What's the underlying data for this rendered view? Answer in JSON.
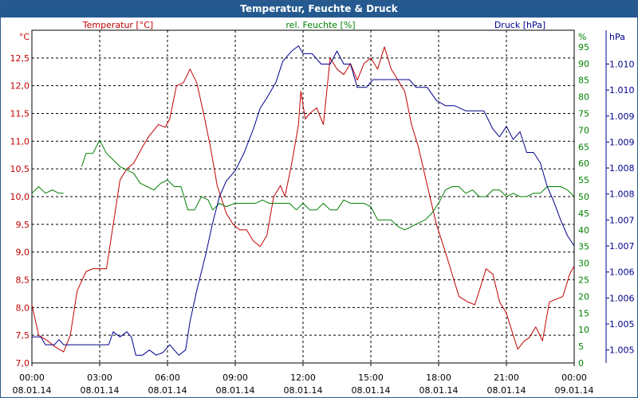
{
  "chart_data": {
    "type": "line",
    "title": "Temperatur, Feuchte & Druck",
    "x_ticks": [
      {
        "time": "00:00",
        "date": "08.01.14"
      },
      {
        "time": "03:00",
        "date": "08.01.14"
      },
      {
        "time": "06:00",
        "date": "08.01.14"
      },
      {
        "time": "09:00",
        "date": "08.01.14"
      },
      {
        "time": "12:00",
        "date": "08.01.14"
      },
      {
        "time": "15:00",
        "date": "08.01.14"
      },
      {
        "time": "18:00",
        "date": "08.01.14"
      },
      {
        "time": "21:00",
        "date": "08.01.14"
      },
      {
        "time": "00:00",
        "date": "09.01.14"
      }
    ],
    "x_range_hours": [
      0,
      24
    ],
    "axes": {
      "temperature": {
        "unit": "°C",
        "label": "Temperatur [°C]",
        "range": [
          7.0,
          13.0
        ],
        "ticks": [
          "7,0",
          "7,5",
          "8,0",
          "8,5",
          "9,0",
          "9,5",
          "10,0",
          "10,5",
          "11,0",
          "11,5",
          "12,0",
          "12,5"
        ],
        "color": "#c00000"
      },
      "humidity": {
        "unit": "%",
        "label": "rel. Feuchte [%]",
        "range": [
          0,
          100
        ],
        "ticks": [
          "0",
          "5",
          "10",
          "15",
          "20",
          "25",
          "30",
          "35",
          "40",
          "45",
          "50",
          "55",
          "60",
          "65",
          "70",
          "75",
          "80",
          "85",
          "90",
          "95"
        ],
        "color": "#008000"
      },
      "pressure": {
        "unit": "hPa",
        "label": "Druck [hPa]",
        "range": [
          1004.5,
          1010.9
        ],
        "ticks": [
          {
            "v": 1004.75,
            "label": "1.005"
          },
          {
            "v": 1005.25,
            "label": "1.005"
          },
          {
            "v": 1005.75,
            "label": "1.006"
          },
          {
            "v": 1006.25,
            "label": "1.006"
          },
          {
            "v": 1006.75,
            "label": "1.007"
          },
          {
            "v": 1007.25,
            "label": "1.007"
          },
          {
            "v": 1007.75,
            "label": "1.008"
          },
          {
            "v": 1008.25,
            "label": "1.008"
          },
          {
            "v": 1008.75,
            "label": "1.009"
          },
          {
            "v": 1009.25,
            "label": "1.009"
          },
          {
            "v": 1009.75,
            "label": "1.010"
          },
          {
            "v": 1010.25,
            "label": "1.010"
          }
        ],
        "color": "#00008b"
      }
    },
    "series": [
      {
        "name": "Temperatur [°C]",
        "axis": "temperature",
        "color": "#c00000",
        "points": [
          [
            0.0,
            8.05
          ],
          [
            0.3,
            7.5
          ],
          [
            0.7,
            7.4
          ],
          [
            1.0,
            7.3
          ],
          [
            1.4,
            7.2
          ],
          [
            1.7,
            7.5
          ],
          [
            2.0,
            8.3
          ],
          [
            2.4,
            8.65
          ],
          [
            2.7,
            8.7
          ],
          [
            3.0,
            8.7
          ],
          [
            3.3,
            8.7
          ],
          [
            3.6,
            9.5
          ],
          [
            3.9,
            10.3
          ],
          [
            4.2,
            10.5
          ],
          [
            4.5,
            10.6
          ],
          [
            4.9,
            10.9
          ],
          [
            5.2,
            11.1
          ],
          [
            5.6,
            11.3
          ],
          [
            5.9,
            11.25
          ],
          [
            6.1,
            11.4
          ],
          [
            6.4,
            12.0
          ],
          [
            6.7,
            12.05
          ],
          [
            7.0,
            12.3
          ],
          [
            7.3,
            12.05
          ],
          [
            7.6,
            11.5
          ],
          [
            7.9,
            10.9
          ],
          [
            8.2,
            10.2
          ],
          [
            8.6,
            9.7
          ],
          [
            8.9,
            9.5
          ],
          [
            9.2,
            9.4
          ],
          [
            9.5,
            9.4
          ],
          [
            9.8,
            9.2
          ],
          [
            10.1,
            9.1
          ],
          [
            10.4,
            9.3
          ],
          [
            10.7,
            10.0
          ],
          [
            11.0,
            10.2
          ],
          [
            11.2,
            10.0
          ],
          [
            11.5,
            10.6
          ],
          [
            11.8,
            11.3
          ],
          [
            11.9,
            11.9
          ],
          [
            12.1,
            11.4
          ],
          [
            12.3,
            11.5
          ],
          [
            12.6,
            11.6
          ],
          [
            12.9,
            11.3
          ],
          [
            13.2,
            12.5
          ],
          [
            13.5,
            12.3
          ],
          [
            13.8,
            12.2
          ],
          [
            14.1,
            12.4
          ],
          [
            14.4,
            12.1
          ],
          [
            14.7,
            12.4
          ],
          [
            15.0,
            12.5
          ],
          [
            15.3,
            12.3
          ],
          [
            15.6,
            12.7
          ],
          [
            15.9,
            12.3
          ],
          [
            16.2,
            12.1
          ],
          [
            16.5,
            11.9
          ],
          [
            16.8,
            11.3
          ],
          [
            17.1,
            10.9
          ],
          [
            17.5,
            10.2
          ],
          [
            17.9,
            9.5
          ],
          [
            18.3,
            9.0
          ],
          [
            18.6,
            8.6
          ],
          [
            18.9,
            8.2
          ],
          [
            19.3,
            8.1
          ],
          [
            19.6,
            8.05
          ],
          [
            19.8,
            8.3
          ],
          [
            20.1,
            8.7
          ],
          [
            20.4,
            8.6
          ],
          [
            20.7,
            8.1
          ],
          [
            21.0,
            7.9
          ],
          [
            21.3,
            7.5
          ],
          [
            21.5,
            7.25
          ],
          [
            21.8,
            7.4
          ],
          [
            22.0,
            7.45
          ],
          [
            22.3,
            7.65
          ],
          [
            22.6,
            7.4
          ],
          [
            22.9,
            8.1
          ],
          [
            23.2,
            8.15
          ],
          [
            23.5,
            8.2
          ],
          [
            23.8,
            8.6
          ],
          [
            24.0,
            8.75
          ]
        ]
      },
      {
        "name": "rel. Feuchte [%]",
        "axis": "humidity",
        "color": "#008000",
        "segments": [
          [
            [
              0.0,
              51
            ],
            [
              0.3,
              53
            ],
            [
              0.6,
              51
            ],
            [
              0.9,
              52
            ],
            [
              1.2,
              51
            ],
            [
              1.4,
              51
            ]
          ],
          [
            [
              2.2,
              59
            ],
            [
              2.4,
              63
            ],
            [
              2.7,
              63
            ],
            [
              3.0,
              67
            ],
            [
              3.3,
              63
            ],
            [
              3.6,
              61
            ],
            [
              3.9,
              59
            ],
            [
              4.2,
              58
            ],
            [
              4.5,
              57
            ],
            [
              4.8,
              54
            ],
            [
              5.1,
              53
            ],
            [
              5.4,
              52
            ],
            [
              5.7,
              54
            ],
            [
              6.0,
              55
            ],
            [
              6.3,
              53
            ],
            [
              6.6,
              53
            ],
            [
              6.9,
              46
            ],
            [
              7.2,
              46
            ],
            [
              7.5,
              50
            ],
            [
              7.8,
              49
            ],
            [
              8.0,
              46
            ],
            [
              8.3,
              48
            ],
            [
              8.6,
              47
            ],
            [
              9.0,
              48
            ],
            [
              9.3,
              48
            ],
            [
              9.6,
              48
            ],
            [
              9.9,
              48
            ],
            [
              10.2,
              49
            ],
            [
              10.5,
              48
            ],
            [
              10.8,
              48
            ],
            [
              11.1,
              48
            ],
            [
              11.4,
              48
            ],
            [
              11.7,
              46
            ],
            [
              12.0,
              48
            ],
            [
              12.3,
              46
            ],
            [
              12.6,
              46
            ],
            [
              12.9,
              48
            ],
            [
              13.2,
              46
            ],
            [
              13.5,
              46
            ],
            [
              13.8,
              49
            ],
            [
              14.1,
              48
            ],
            [
              14.4,
              48
            ],
            [
              14.7,
              48
            ],
            [
              15.0,
              47
            ],
            [
              15.3,
              43
            ],
            [
              15.6,
              43
            ],
            [
              15.9,
              43
            ],
            [
              16.2,
              41
            ],
            [
              16.5,
              40
            ],
            [
              16.8,
              41
            ],
            [
              17.1,
              42
            ],
            [
              17.4,
              43
            ],
            [
              17.7,
              45
            ],
            [
              18.0,
              48
            ],
            [
              18.3,
              52
            ],
            [
              18.6,
              53
            ],
            [
              18.9,
              53
            ],
            [
              19.2,
              51
            ],
            [
              19.5,
              52
            ],
            [
              19.8,
              50
            ],
            [
              20.1,
              50
            ],
            [
              20.4,
              52
            ],
            [
              20.7,
              52
            ],
            [
              21.0,
              50
            ],
            [
              21.3,
              51
            ],
            [
              21.6,
              50
            ],
            [
              21.9,
              50
            ],
            [
              22.2,
              51
            ],
            [
              22.5,
              51
            ],
            [
              22.8,
              53
            ],
            [
              23.1,
              53
            ],
            [
              23.4,
              53
            ],
            [
              23.7,
              52
            ],
            [
              24.0,
              50
            ]
          ]
        ]
      },
      {
        "name": "Druck [hPa]",
        "axis": "pressure",
        "color": "#00008b",
        "points": [
          [
            0.0,
            1005.0
          ],
          [
            0.4,
            1005.0
          ],
          [
            0.6,
            1004.85
          ],
          [
            1.0,
            1004.85
          ],
          [
            1.2,
            1004.95
          ],
          [
            1.4,
            1004.85
          ],
          [
            2.0,
            1004.85
          ],
          [
            2.6,
            1004.85
          ],
          [
            3.0,
            1004.85
          ],
          [
            3.4,
            1004.85
          ],
          [
            3.6,
            1005.1
          ],
          [
            3.9,
            1005.0
          ],
          [
            4.2,
            1005.1
          ],
          [
            4.4,
            1005.0
          ],
          [
            4.6,
            1004.65
          ],
          [
            4.9,
            1004.65
          ],
          [
            5.2,
            1004.75
          ],
          [
            5.5,
            1004.65
          ],
          [
            5.8,
            1004.7
          ],
          [
            6.1,
            1004.85
          ],
          [
            6.3,
            1004.75
          ],
          [
            6.5,
            1004.65
          ],
          [
            6.8,
            1004.75
          ],
          [
            7.0,
            1005.3
          ],
          [
            7.3,
            1005.9
          ],
          [
            7.7,
            1006.6
          ],
          [
            8.0,
            1007.2
          ],
          [
            8.3,
            1007.7
          ],
          [
            8.6,
            1008.0
          ],
          [
            9.0,
            1008.2
          ],
          [
            9.4,
            1008.55
          ],
          [
            9.8,
            1009.0
          ],
          [
            10.1,
            1009.4
          ],
          [
            10.4,
            1009.6
          ],
          [
            10.8,
            1009.9
          ],
          [
            11.1,
            1010.3
          ],
          [
            11.5,
            1010.5
          ],
          [
            11.8,
            1010.6
          ],
          [
            12.0,
            1010.45
          ],
          [
            12.4,
            1010.45
          ],
          [
            12.8,
            1010.25
          ],
          [
            13.2,
            1010.25
          ],
          [
            13.5,
            1010.5
          ],
          [
            13.8,
            1010.25
          ],
          [
            14.1,
            1010.25
          ],
          [
            14.4,
            1009.8
          ],
          [
            14.8,
            1009.8
          ],
          [
            15.1,
            1009.95
          ],
          [
            15.5,
            1009.95
          ],
          [
            15.9,
            1009.95
          ],
          [
            16.3,
            1009.95
          ],
          [
            16.7,
            1009.95
          ],
          [
            17.0,
            1009.8
          ],
          [
            17.5,
            1009.8
          ],
          [
            17.9,
            1009.55
          ],
          [
            18.3,
            1009.45
          ],
          [
            18.7,
            1009.45
          ],
          [
            19.2,
            1009.35
          ],
          [
            19.6,
            1009.35
          ],
          [
            20.0,
            1009.35
          ],
          [
            20.4,
            1009.0
          ],
          [
            20.7,
            1008.85
          ],
          [
            21.0,
            1009.05
          ],
          [
            21.3,
            1008.8
          ],
          [
            21.6,
            1008.95
          ],
          [
            21.9,
            1008.55
          ],
          [
            22.2,
            1008.55
          ],
          [
            22.5,
            1008.35
          ],
          [
            22.8,
            1007.9
          ],
          [
            23.1,
            1007.6
          ],
          [
            23.4,
            1007.25
          ],
          [
            23.7,
            1006.95
          ],
          [
            24.0,
            1006.75
          ]
        ]
      }
    ]
  }
}
